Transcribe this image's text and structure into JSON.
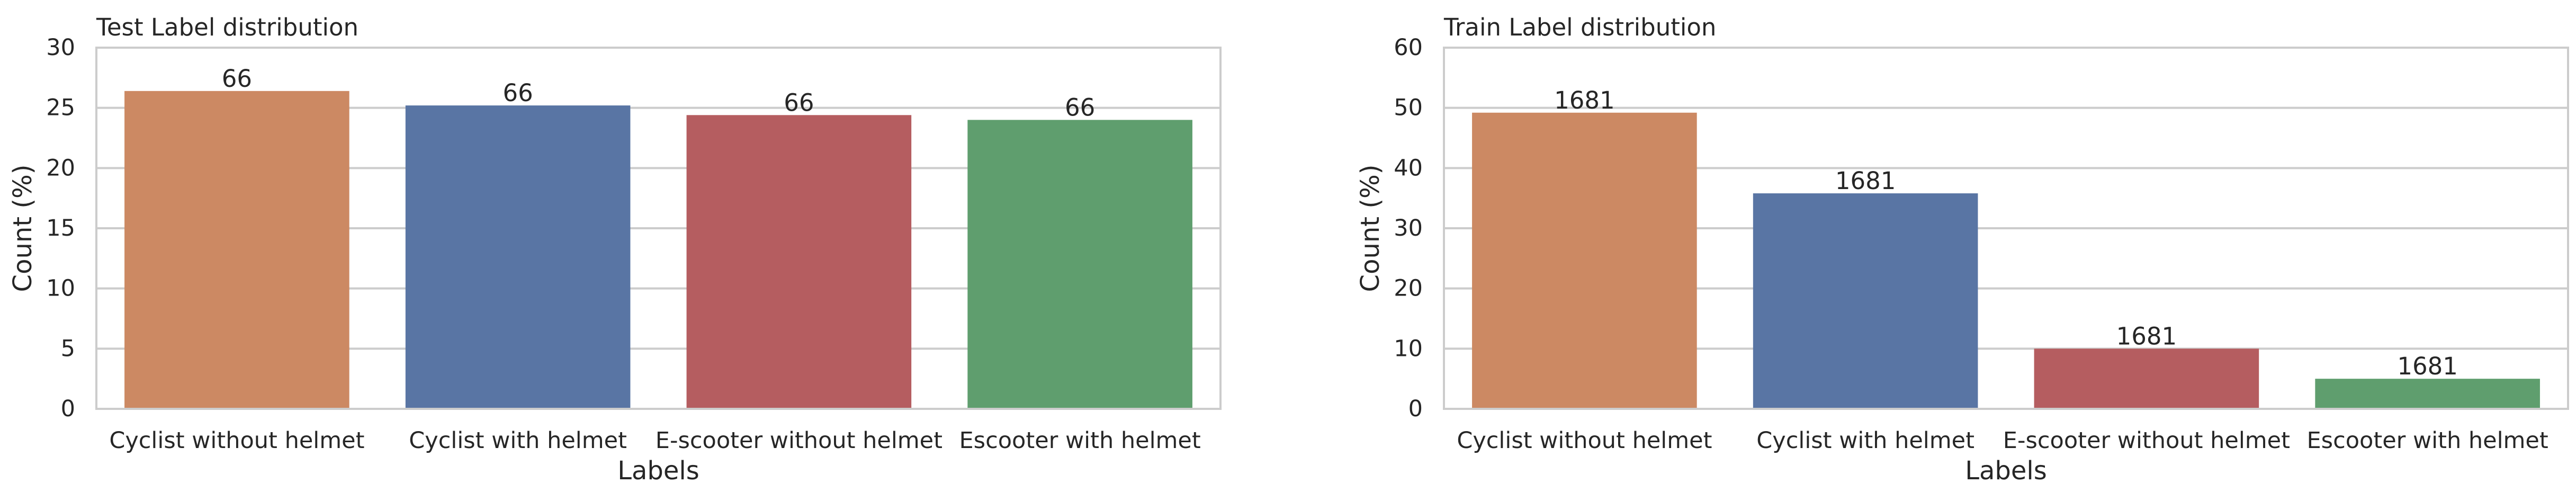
{
  "colors": {
    "orange": "#cc8963",
    "blue": "#5975a4",
    "red": "#b55d60",
    "green": "#5f9e6e",
    "grid": "#cccccc",
    "text": "#262626"
  },
  "chart_data": [
    {
      "type": "bar",
      "title": "Test Label distribution",
      "xlabel": "Labels",
      "ylabel": "Count (%)",
      "categories": [
        "Cyclist without helmet",
        "Cyclist with helmet",
        "E-scooter without helmet",
        "Escooter with helmet"
      ],
      "values": [
        26.4,
        25.2,
        24.4,
        24.0
      ],
      "data_labels": [
        "66",
        "66",
        "66",
        "66"
      ],
      "bar_colors": [
        "#cc8963",
        "#5975a4",
        "#b55d60",
        "#5f9e6e"
      ],
      "ylim": [
        0,
        30
      ],
      "yticks": [
        0,
        5,
        10,
        15,
        20,
        25,
        30
      ],
      "grid": "y"
    },
    {
      "type": "bar",
      "title": "Train Label distribution",
      "xlabel": "Labels",
      "ylabel": "Count (%)",
      "categories": [
        "Cyclist without helmet",
        "Cyclist with helmet",
        "E-scooter without helmet",
        "Escooter with helmet"
      ],
      "values": [
        49.2,
        35.8,
        10.0,
        5.0
      ],
      "data_labels": [
        "1681",
        "1681",
        "1681",
        "1681"
      ],
      "bar_colors": [
        "#cc8963",
        "#5975a4",
        "#b55d60",
        "#5f9e6e"
      ],
      "ylim": [
        0,
        60
      ],
      "yticks": [
        0,
        10,
        20,
        30,
        40,
        50,
        60
      ],
      "grid": "y"
    }
  ]
}
